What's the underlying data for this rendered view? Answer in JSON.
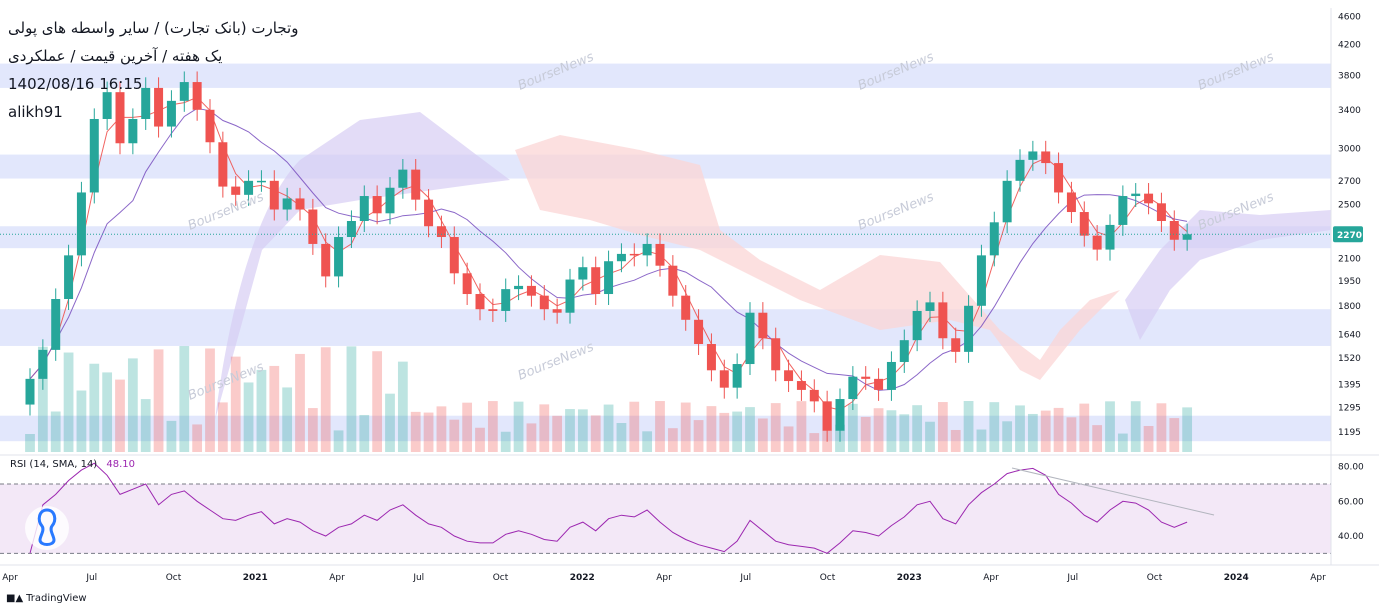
{
  "overlay": {
    "title_line1": "وتجارت (بانک تجارت) / سایر واسطه های پولی",
    "title_line2": "یک هفته / آخرین قیمت / عملکردی",
    "datetime": "1402/08/16 16:15",
    "author": "alikh91"
  },
  "brand": {
    "name": "TradingView",
    "logo": "tradingview-logo-icon"
  },
  "watermark": "BourseNews",
  "colors": {
    "up": "#26a69a",
    "down": "#ef5350",
    "rsi": "#9c27b0",
    "fast_ma": "#ef5350",
    "slow_ma": "#7e57c2",
    "zone": "#dde3fb",
    "cloud_bull": "#d7cdf3",
    "cloud_bear": "#fbd6d6"
  },
  "chart_data": [
    {
      "type": "candlestick",
      "title": "",
      "interval": "1W",
      "price_scale": [
        "4600",
        "4200",
        "3800",
        "3400",
        "3000",
        "2700",
        "2500",
        "2270",
        "2100",
        "1950",
        "1800",
        "1640",
        "1520",
        "1395",
        "1295",
        "1195"
      ],
      "last_price": "2270",
      "ylim": [
        1120,
        4700
      ],
      "log_scale": true,
      "support_resistance_zones": [
        [
          3650,
          3950
        ],
        [
          2720,
          2940
        ],
        [
          2170,
          2330
        ],
        [
          1580,
          1780
        ],
        [
          1160,
          1260
        ]
      ],
      "x_labels": [
        "Apr",
        "Jul",
        "Oct",
        "2021",
        "Apr",
        "Jul",
        "Oct",
        "2022",
        "Apr",
        "Jul",
        "Oct",
        "2023",
        "Apr",
        "Jul",
        "Oct",
        "2024",
        "Apr"
      ],
      "close_series": [
        1420,
        1560,
        1840,
        2120,
        2600,
        3300,
        3600,
        3050,
        3300,
        3650,
        3220,
        3500,
        3720,
        3400,
        3060,
        2650,
        2580,
        2700,
        2700,
        2460,
        2550,
        2460,
        2200,
        1980,
        2250,
        2370,
        2570,
        2430,
        2640,
        2800,
        2540,
        2330,
        2250,
        2000,
        1870,
        1780,
        1770,
        1900,
        1920,
        1860,
        1780,
        1760,
        1960,
        2040,
        1870,
        2080,
        2130,
        2120,
        2200,
        2050,
        1860,
        1720,
        1590,
        1460,
        1380,
        1490,
        1760,
        1620,
        1460,
        1410,
        1370,
        1320,
        1200,
        1330,
        1430,
        1420,
        1370,
        1500,
        1610,
        1770,
        1820,
        1620,
        1550,
        1800,
        2120,
        2360,
        2700,
        2890,
        2970,
        2860,
        2600,
        2440,
        2260,
        2160,
        2340,
        2570,
        2590,
        2510,
        2370,
        2230,
        2270
      ],
      "rsi": {
        "name": "RSI",
        "label": "RSI (14, SMA, 14)",
        "value": "48.10",
        "scale": [
          "80.00",
          "60.00",
          "40.00"
        ],
        "levels": [
          70,
          30
        ],
        "values": [
          30,
          58,
          64,
          72,
          78,
          82,
          75,
          64,
          67,
          70,
          58,
          64,
          66,
          60,
          55,
          50,
          49,
          52,
          54,
          47,
          50,
          48,
          43,
          40,
          45,
          47,
          52,
          49,
          55,
          58,
          52,
          47,
          45,
          40,
          37,
          36,
          36,
          41,
          43,
          41,
          38,
          37,
          45,
          48,
          43,
          50,
          52,
          51,
          55,
          48,
          42,
          38,
          35,
          33,
          31,
          37,
          49,
          43,
          37,
          35,
          34,
          33,
          30,
          36,
          43,
          42,
          40,
          46,
          51,
          58,
          60,
          50,
          47,
          58,
          65,
          70,
          76,
          78,
          79,
          75,
          64,
          59,
          52,
          48,
          55,
          60,
          59,
          55,
          48,
          45,
          48
        ]
      }
    }
  ]
}
